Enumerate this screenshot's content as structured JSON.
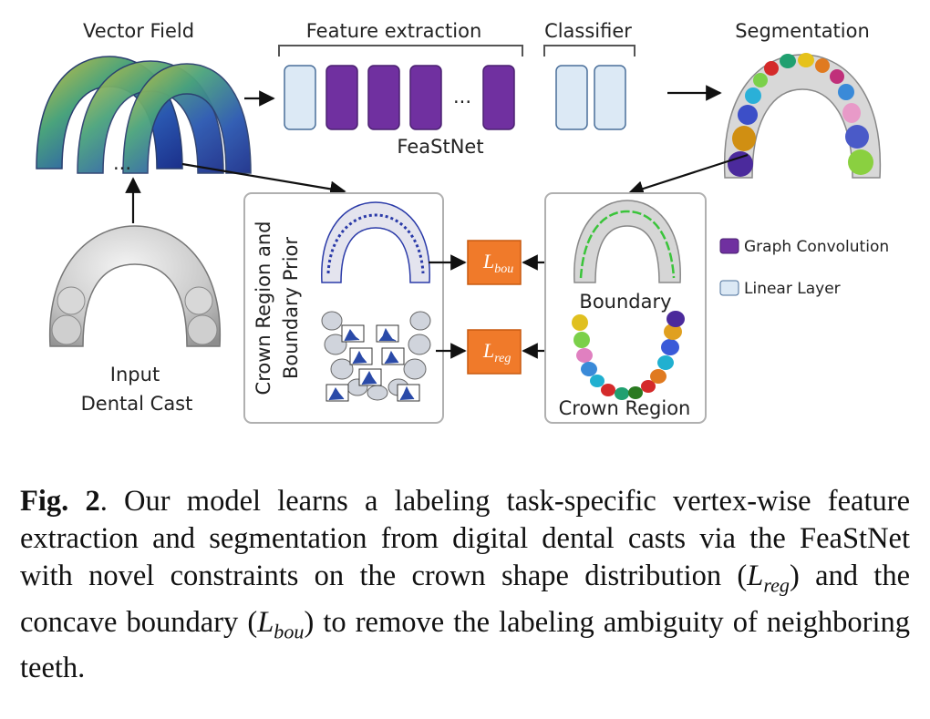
{
  "labels": {
    "vector_field": "Vector Field",
    "feature_extraction": "Feature extraction",
    "classifier": "Classifier",
    "segmentation": "Segmentation",
    "feastnet": "FeaStNet",
    "ellipsis": "...",
    "ellipsis_left": "...",
    "input_line1": "Input",
    "input_line2": "Dental Cast",
    "prior_line1": "Crown Region and",
    "prior_line2": "Boundary Prior",
    "boundary": "Boundary",
    "crown_region": "Crown Region"
  },
  "loss_boxes": {
    "bou": {
      "main": "L",
      "sub": "bou"
    },
    "reg": {
      "main": "L",
      "sub": "reg"
    }
  },
  "legend": [
    {
      "label": "Graph Convolution",
      "color": "#7030a0"
    },
    {
      "label": "Linear Layer",
      "color": "#dce9f5"
    }
  ],
  "colors": {
    "graph_conv": "#7030a0",
    "linear_layer": "#dce9f5",
    "linear_border": "#4a6f9a",
    "loss_box": "#f07a2a",
    "panel_border": "#b0b0b0"
  },
  "caption": {
    "fig_label": "Fig. 2",
    "text_1": ". Our model learns a labeling task-specific vertex-wise feature extraction and segmentation from digital dental casts via the FeaStNet with novel constraints on the crown shape distribution (",
    "loss_reg_main": "L",
    "loss_reg_sub": "reg",
    "text_2": ") and the concave boundary (",
    "loss_bou_main": "L",
    "loss_bou_sub": "bou",
    "text_3": ") to remove the labeling ambiguity of neighboring teeth."
  }
}
